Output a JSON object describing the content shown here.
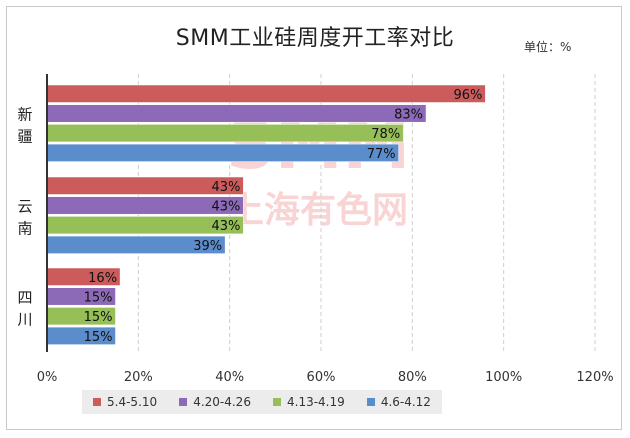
{
  "chart_data": {
    "type": "bar",
    "orientation": "horizontal",
    "title": "SMM工业硅周度开工率对比",
    "unit_label": "单位：%",
    "watermark": "SMM 上海有色网",
    "categories": [
      "新疆",
      "云南",
      "四川"
    ],
    "series": [
      {
        "name": "5.4-5.10",
        "color": "#cc5c5c",
        "values": [
          96,
          43,
          16
        ]
      },
      {
        "name": "4.20-4.26",
        "color": "#8c6ab7",
        "values": [
          83,
          43,
          15
        ]
      },
      {
        "name": "4.13-4.19",
        "color": "#97bf57",
        "values": [
          78,
          43,
          15
        ]
      },
      {
        "name": "4.6-4.12",
        "color": "#5b8ccb",
        "values": [
          77,
          39,
          15
        ]
      }
    ],
    "xlim": [
      0,
      120
    ],
    "xticks": [
      "0%",
      "20%",
      "40%",
      "60%",
      "80%",
      "100%",
      "120%"
    ],
    "grid": "vertical-dashed",
    "legend_position": "bottom"
  }
}
